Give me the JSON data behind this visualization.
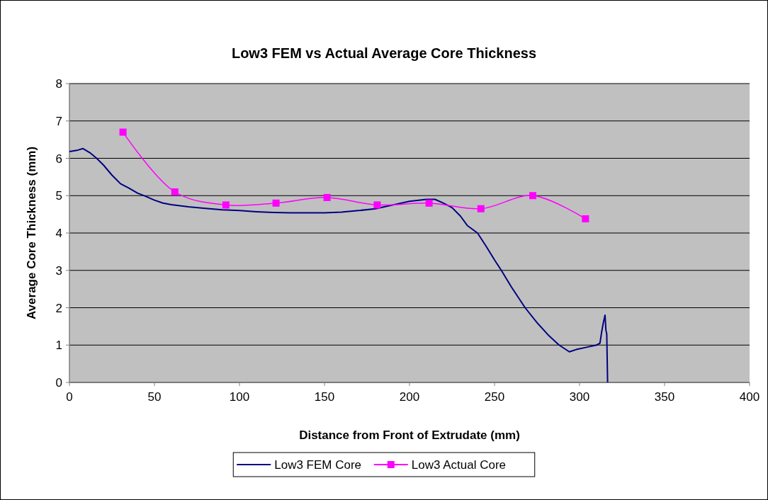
{
  "chart_data": {
    "type": "line",
    "title": "Low3 FEM vs Actual Average Core Thickness",
    "xlabel": "Distance from Front of Extrudate (mm)",
    "ylabel": "Average Core Thickness (mm)",
    "xlim": [
      0,
      400
    ],
    "xticks": [
      0,
      50,
      100,
      150,
      200,
      250,
      300,
      350,
      400
    ],
    "ylim": [
      0,
      8
    ],
    "yticks": [
      0,
      1,
      2,
      3,
      4,
      5,
      6,
      7,
      8
    ],
    "grid": "y",
    "legend": "bottom",
    "series": [
      {
        "name": "Low3 FEM Core",
        "color": "#000080",
        "marker": "none",
        "x": [
          0,
          5,
          8,
          12,
          16,
          20,
          25,
          30,
          35,
          40,
          45,
          50,
          55,
          60,
          65,
          70,
          80,
          90,
          100,
          110,
          120,
          130,
          150,
          160,
          170,
          180,
          190,
          200,
          210,
          215,
          220,
          225,
          230,
          234,
          240,
          245,
          250,
          254,
          260,
          268,
          275,
          282,
          288,
          294,
          298,
          305,
          310,
          312,
          313,
          314,
          315,
          315.5,
          316,
          316.5
        ],
        "values": [
          6.18,
          6.22,
          6.26,
          6.15,
          6.0,
          5.82,
          5.55,
          5.32,
          5.2,
          5.07,
          4.98,
          4.88,
          4.8,
          4.76,
          4.73,
          4.7,
          4.66,
          4.62,
          4.6,
          4.57,
          4.55,
          4.54,
          4.54,
          4.56,
          4.6,
          4.65,
          4.75,
          4.85,
          4.9,
          4.9,
          4.8,
          4.68,
          4.45,
          4.2,
          4.0,
          3.65,
          3.28,
          3.0,
          2.55,
          2.0,
          1.6,
          1.25,
          1.0,
          0.82,
          0.88,
          0.95,
          1.0,
          1.05,
          1.35,
          1.6,
          1.8,
          1.4,
          1.3,
          0
        ]
      },
      {
        "name": "Low3 Actual Core",
        "color": "#ff00ff",
        "marker": "square",
        "x": [
          31.5,
          62,
          92,
          121.5,
          151.5,
          181,
          211.5,
          242,
          272.5,
          303.5
        ],
        "values": [
          6.7,
          5.1,
          4.75,
          4.8,
          4.95,
          4.75,
          4.8,
          4.65,
          5.0,
          4.38
        ]
      }
    ]
  }
}
